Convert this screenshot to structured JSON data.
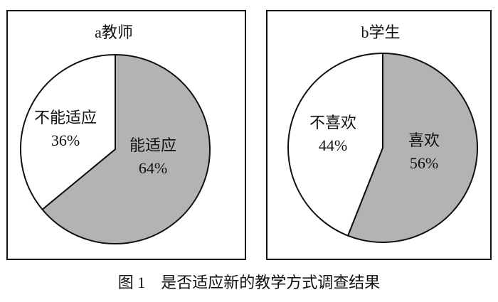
{
  "chart_data": [
    {
      "type": "pie",
      "title": "a教师",
      "categories": [
        "能适应",
        "不能适应"
      ],
      "values": [
        64,
        36
      ],
      "value_labels": [
        "64%",
        "36%"
      ],
      "colors": [
        "#b3b3b3",
        "#ffffff"
      ]
    },
    {
      "type": "pie",
      "title": "b学生",
      "categories": [
        "喜欢",
        "不喜欢"
      ],
      "values": [
        56,
        44
      ],
      "value_labels": [
        "56%",
        "44%"
      ],
      "colors": [
        "#b3b3b3",
        "#ffffff"
      ]
    }
  ],
  "caption": "图 1　是否适应新的教学方式调查结果"
}
